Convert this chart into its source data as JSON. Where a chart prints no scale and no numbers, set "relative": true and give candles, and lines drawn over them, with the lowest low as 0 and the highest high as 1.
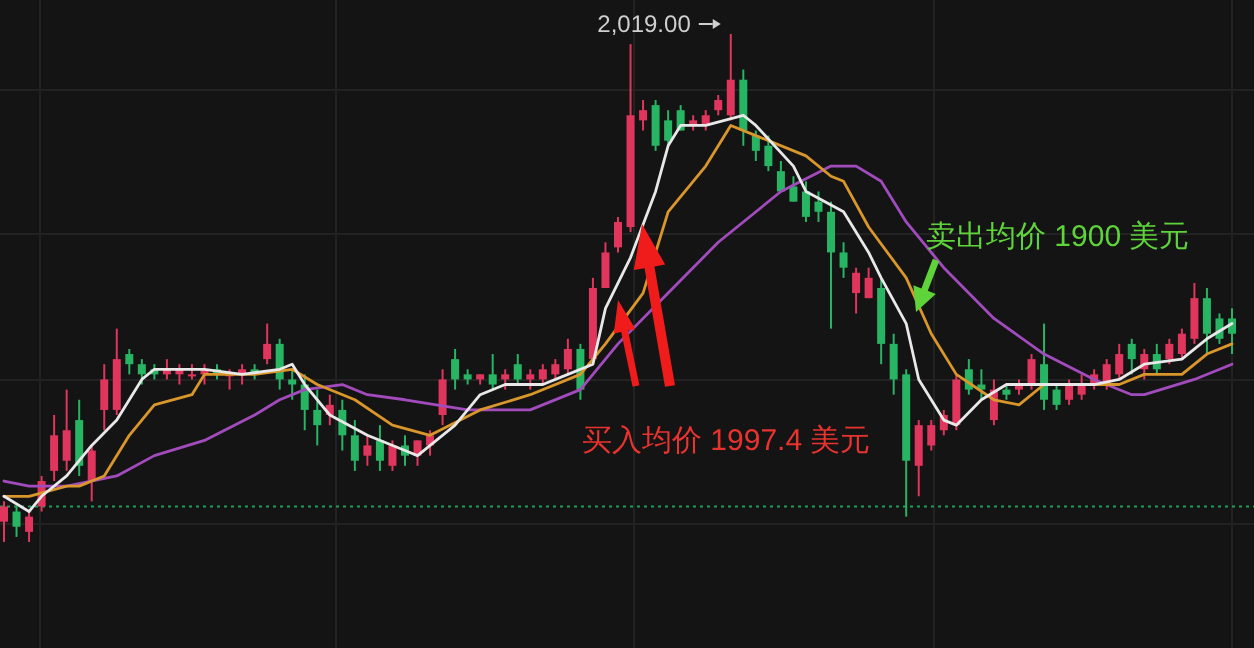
{
  "chart_data": {
    "type": "candlestick",
    "relative": true,
    "grid": true,
    "categories": [
      null,
      null,
      null,
      null,
      null,
      null,
      null,
      null,
      null,
      null,
      null,
      null,
      null,
      null,
      null,
      null,
      null,
      null,
      null,
      null,
      null,
      null,
      null,
      null,
      null,
      null,
      null,
      null,
      null,
      null,
      null,
      null,
      null,
      null,
      null,
      null,
      null,
      null,
      null,
      null,
      null,
      null,
      null,
      null,
      null,
      null,
      null,
      null,
      null,
      null,
      null,
      null,
      null,
      null,
      null,
      null,
      null,
      null,
      null,
      null,
      null,
      null,
      null,
      null,
      null,
      null,
      null,
      null,
      null,
      null,
      null,
      null,
      null,
      null,
      null,
      null,
      null,
      null,
      null,
      null,
      null,
      null,
      null,
      null,
      null,
      null,
      null,
      null,
      null,
      null,
      null,
      null,
      null,
      null,
      null,
      null,
      null,
      null,
      null
    ],
    "ohlc": [
      [
        0.04,
        0.08,
        0.0,
        0.07
      ],
      [
        0.06,
        0.07,
        0.01,
        0.03
      ],
      [
        0.02,
        0.06,
        0.0,
        0.05
      ],
      [
        0.07,
        0.13,
        0.06,
        0.12
      ],
      [
        0.14,
        0.25,
        0.12,
        0.21
      ],
      [
        0.16,
        0.3,
        0.14,
        0.22
      ],
      [
        0.24,
        0.28,
        0.13,
        0.15
      ],
      [
        0.12,
        0.19,
        0.08,
        0.18
      ],
      [
        0.26,
        0.35,
        0.22,
        0.32
      ],
      [
        0.26,
        0.42,
        0.25,
        0.36
      ],
      [
        0.37,
        0.38,
        0.33,
        0.35
      ],
      [
        0.35,
        0.36,
        0.31,
        0.33
      ],
      [
        0.34,
        0.35,
        0.32,
        0.33
      ],
      [
        0.33,
        0.36,
        0.32,
        0.34
      ],
      [
        0.33,
        0.35,
        0.31,
        0.34
      ],
      [
        0.33,
        0.35,
        0.32,
        0.33
      ],
      [
        0.33,
        0.35,
        0.31,
        0.34
      ],
      [
        0.34,
        0.35,
        0.32,
        0.33
      ],
      [
        0.33,
        0.34,
        0.3,
        0.33
      ],
      [
        0.33,
        0.35,
        0.31,
        0.34
      ],
      [
        0.34,
        0.35,
        0.32,
        0.33
      ],
      [
        0.36,
        0.43,
        0.35,
        0.39
      ],
      [
        0.39,
        0.4,
        0.3,
        0.32
      ],
      [
        0.32,
        0.34,
        0.28,
        0.31
      ],
      [
        0.31,
        0.33,
        0.22,
        0.26
      ],
      [
        0.26,
        0.3,
        0.19,
        0.23
      ],
      [
        0.25,
        0.29,
        0.23,
        0.27
      ],
      [
        0.26,
        0.28,
        0.18,
        0.21
      ],
      [
        0.21,
        0.24,
        0.14,
        0.16
      ],
      [
        0.17,
        0.21,
        0.15,
        0.19
      ],
      [
        0.2,
        0.23,
        0.14,
        0.16
      ],
      [
        0.15,
        0.2,
        0.14,
        0.19
      ],
      [
        0.19,
        0.21,
        0.15,
        0.17
      ],
      [
        0.17,
        0.2,
        0.15,
        0.2
      ],
      [
        0.19,
        0.22,
        0.17,
        0.21
      ],
      [
        0.25,
        0.34,
        0.23,
        0.32
      ],
      [
        0.36,
        0.38,
        0.3,
        0.32
      ],
      [
        0.33,
        0.34,
        0.31,
        0.32
      ],
      [
        0.32,
        0.33,
        0.31,
        0.33
      ],
      [
        0.33,
        0.37,
        0.3,
        0.31
      ],
      [
        0.32,
        0.34,
        0.3,
        0.33
      ],
      [
        0.35,
        0.37,
        0.31,
        0.32
      ],
      [
        0.32,
        0.34,
        0.3,
        0.33
      ],
      [
        0.32,
        0.35,
        0.31,
        0.34
      ],
      [
        0.33,
        0.36,
        0.32,
        0.35
      ],
      [
        0.34,
        0.4,
        0.33,
        0.38
      ],
      [
        0.38,
        0.39,
        0.28,
        0.3
      ],
      [
        0.36,
        0.52,
        0.35,
        0.5
      ],
      [
        0.5,
        0.59,
        0.5,
        0.57
      ],
      [
        0.58,
        0.64,
        0.57,
        0.63
      ],
      [
        0.62,
        0.98,
        0.61,
        0.84
      ],
      [
        0.83,
        0.87,
        0.81,
        0.85
      ],
      [
        0.86,
        0.87,
        0.77,
        0.78
      ],
      [
        0.83,
        0.85,
        0.78,
        0.79
      ],
      [
        0.85,
        0.86,
        0.81,
        0.81
      ],
      [
        0.82,
        0.84,
        0.81,
        0.83
      ],
      [
        0.82,
        0.85,
        0.81,
        0.84
      ],
      [
        0.85,
        0.88,
        0.84,
        0.87
      ],
      [
        0.84,
        1.0,
        0.83,
        0.91
      ],
      [
        0.91,
        0.93,
        0.78,
        0.81
      ],
      [
        0.8,
        0.81,
        0.75,
        0.77
      ],
      [
        0.78,
        0.8,
        0.73,
        0.74
      ],
      [
        0.73,
        0.75,
        0.69,
        0.69
      ],
      [
        0.7,
        0.72,
        0.67,
        0.67
      ],
      [
        0.69,
        0.71,
        0.63,
        0.64
      ],
      [
        0.67,
        0.69,
        0.63,
        0.65
      ],
      [
        0.65,
        0.67,
        0.42,
        0.57
      ],
      [
        0.57,
        0.59,
        0.52,
        0.54
      ],
      [
        0.49,
        0.54,
        0.45,
        0.53
      ],
      [
        0.48,
        0.54,
        0.48,
        0.52
      ],
      [
        0.5,
        0.52,
        0.35,
        0.39
      ],
      [
        0.39,
        0.41,
        0.29,
        0.32
      ],
      [
        0.33,
        0.34,
        0.05,
        0.16
      ],
      [
        0.15,
        0.24,
        0.09,
        0.23
      ],
      [
        0.19,
        0.24,
        0.18,
        0.23
      ],
      [
        0.22,
        0.26,
        0.21,
        0.25
      ],
      [
        0.23,
        0.33,
        0.22,
        0.32
      ],
      [
        0.34,
        0.36,
        0.29,
        0.3
      ],
      [
        0.31,
        0.34,
        0.28,
        0.3
      ],
      [
        0.24,
        0.32,
        0.23,
        0.3
      ],
      [
        0.3,
        0.31,
        0.28,
        0.29
      ],
      [
        0.3,
        0.32,
        0.29,
        0.31
      ],
      [
        0.31,
        0.37,
        0.3,
        0.36
      ],
      [
        0.35,
        0.43,
        0.26,
        0.28
      ],
      [
        0.3,
        0.31,
        0.26,
        0.27
      ],
      [
        0.28,
        0.32,
        0.27,
        0.31
      ],
      [
        0.29,
        0.33,
        0.28,
        0.31
      ],
      [
        0.31,
        0.34,
        0.3,
        0.33
      ],
      [
        0.31,
        0.36,
        0.3,
        0.35
      ],
      [
        0.33,
        0.39,
        0.32,
        0.37
      ],
      [
        0.39,
        0.4,
        0.33,
        0.36
      ],
      [
        0.34,
        0.38,
        0.32,
        0.37
      ],
      [
        0.37,
        0.39,
        0.33,
        0.34
      ],
      [
        0.36,
        0.4,
        0.35,
        0.39
      ],
      [
        0.37,
        0.42,
        0.36,
        0.41
      ],
      [
        0.4,
        0.51,
        0.39,
        0.48
      ],
      [
        0.48,
        0.5,
        0.37,
        0.41
      ],
      [
        0.44,
        0.45,
        0.39,
        0.4
      ],
      [
        0.44,
        0.46,
        0.37,
        0.41
      ]
    ],
    "series": [
      {
        "type": "line",
        "color": "#e8e8e8",
        "values": [
          0.09,
          null,
          0.06,
          0.09,
          null,
          0.13,
          null,
          0.19,
          null,
          0.24,
          0.28,
          0.32,
          0.34,
          null,
          null,
          null,
          0.34,
          null,
          null,
          0.33,
          null,
          null,
          0.34,
          0.35,
          0.31,
          null,
          0.25,
          null,
          null,
          0.21,
          null,
          null,
          0.18,
          0.17,
          null,
          null,
          0.23,
          null,
          0.29,
          null,
          0.31,
          null,
          null,
          0.31,
          null,
          0.33,
          null,
          0.35,
          0.46,
          null,
          0.56,
          null,
          0.69,
          0.78,
          0.82,
          null,
          0.82,
          null,
          null,
          0.84,
          0.82,
          null,
          null,
          0.74,
          0.69,
          null,
          null,
          0.65,
          null,
          0.57,
          0.52,
          null,
          0.43,
          0.32,
          null,
          0.24,
          0.23,
          null,
          0.28,
          null,
          0.31,
          null,
          null,
          0.31,
          null,
          null,
          null,
          0.31,
          null,
          0.32,
          null,
          0.35,
          null,
          null,
          0.36,
          null,
          0.4,
          null,
          0.43
        ]
      },
      {
        "type": "line",
        "color": "#d9962b",
        "values": [
          0.09,
          null,
          0.09,
          null,
          null,
          0.11,
          0.11,
          null,
          0.13,
          null,
          0.21,
          null,
          0.27,
          null,
          null,
          0.29,
          0.33,
          null,
          null,
          null,
          0.33,
          null,
          null,
          0.34,
          null,
          0.31,
          null,
          null,
          0.28,
          null,
          null,
          0.23,
          null,
          null,
          0.21,
          null,
          null,
          null,
          0.26,
          null,
          null,
          null,
          0.29,
          null,
          null,
          null,
          0.33,
          null,
          0.39,
          null,
          null,
          0.49,
          null,
          0.65,
          null,
          null,
          0.74,
          null,
          0.82,
          null,
          0.8,
          null,
          null,
          null,
          0.76,
          null,
          0.72,
          0.71,
          null,
          0.62,
          null,
          null,
          0.52,
          null,
          0.41,
          null,
          0.33,
          null,
          null,
          0.28,
          null,
          0.27,
          null,
          0.31,
          null,
          null,
          null,
          0.31,
          null,
          0.31,
          null,
          0.33,
          null,
          null,
          0.33,
          null,
          0.37,
          null,
          0.39
        ]
      },
      {
        "type": "line",
        "color": "#a24bbd",
        "values": [
          0.12,
          null,
          0.11,
          null,
          null,
          0.11,
          null,
          null,
          null,
          0.13,
          null,
          null,
          0.17,
          null,
          null,
          null,
          0.2,
          null,
          null,
          null,
          0.25,
          null,
          0.28,
          null,
          0.3,
          null,
          null,
          0.31,
          null,
          0.29,
          null,
          null,
          0.28,
          null,
          null,
          null,
          null,
          0.26,
          null,
          null,
          null,
          null,
          0.26,
          null,
          null,
          null,
          0.3,
          null,
          null,
          0.39,
          null,
          null,
          null,
          0.49,
          null,
          null,
          null,
          0.59,
          null,
          null,
          null,
          null,
          0.69,
          null,
          null,
          null,
          0.74,
          null,
          0.74,
          null,
          0.71,
          null,
          0.63,
          null,
          null,
          0.54,
          null,
          null,
          null,
          0.44,
          null,
          null,
          null,
          0.37,
          null,
          null,
          null,
          0.32,
          null,
          null,
          0.29,
          0.29,
          null,
          null,
          null,
          0.32,
          null,
          null,
          0.35
        ]
      }
    ],
    "ref_lines": [
      {
        "axis": "y",
        "value": 0.07,
        "color": "#1f9e5a",
        "line_style": "dotted"
      }
    ],
    "annotations": [
      "2,019.00",
      "买入均价 1997.4 美元",
      "卖出均价 1900 美元"
    ]
  }
}
